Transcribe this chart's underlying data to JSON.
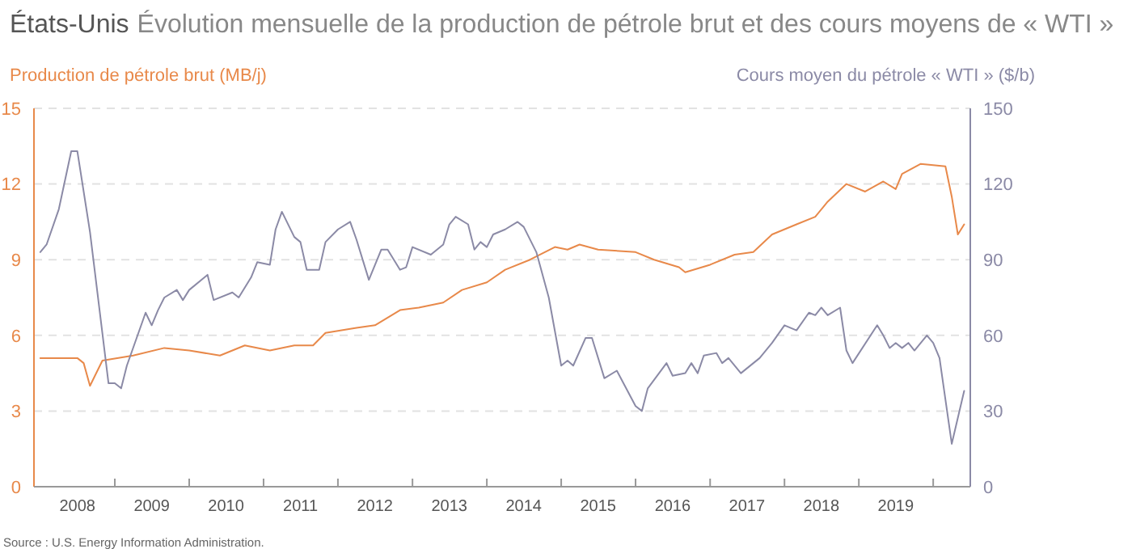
{
  "chart_data": {
    "type": "line",
    "title": "États-Unis",
    "subtitle": "Évolution mensuelle de la production de pétrole brut et des cours moyens de « WTI »",
    "ylabel": "Production de pétrole brut (MB/j)",
    "y2label": "Cours moyen du pétrole « WTI » ($/b)",
    "annotations": [
      "Source : U.S. Energy Information Administration."
    ],
    "xlim": [
      "2007-12",
      "2020-07"
    ],
    "xticks": [
      {
        "value": "2008-07",
        "label": "2008"
      },
      {
        "value": "2009-01",
        "label": null
      },
      {
        "value": "2009-07",
        "label": "2009"
      },
      {
        "value": "2010-01",
        "label": null
      },
      {
        "value": "2010-07",
        "label": "2010"
      },
      {
        "value": "2011-01",
        "label": null
      },
      {
        "value": "2011-07",
        "label": "2011"
      },
      {
        "value": "2012-01",
        "label": null
      },
      {
        "value": "2012-07",
        "label": "2012"
      },
      {
        "value": "2013-01",
        "label": null
      },
      {
        "value": "2013-07",
        "label": "2013"
      },
      {
        "value": "2014-01",
        "label": null
      },
      {
        "value": "2014-07",
        "label": "2014"
      },
      {
        "value": "2015-01",
        "label": null
      },
      {
        "value": "2015-07",
        "label": "2015"
      },
      {
        "value": "2016-01",
        "label": null
      },
      {
        "value": "2016-07",
        "label": "2016"
      },
      {
        "value": "2017-01",
        "label": null
      },
      {
        "value": "2017-07",
        "label": "2017"
      },
      {
        "value": "2018-01",
        "label": null
      },
      {
        "value": "2018-07",
        "label": "2018"
      },
      {
        "value": "2019-01",
        "label": null
      },
      {
        "value": "2019-07",
        "label": "2019"
      },
      {
        "value": "2020-01",
        "label": null
      }
    ],
    "ylim": [
      0,
      15
    ],
    "yticks": [
      0,
      3,
      6,
      9,
      12,
      15
    ],
    "y2lim": [
      0,
      150
    ],
    "y2ticks": [
      0,
      30,
      60,
      90,
      120,
      150
    ],
    "grid": "y",
    "marker": "none",
    "line_style": "solid",
    "series": [
      {
        "color": "#e8894a",
        "x": [
          "2008-01",
          "2008-07",
          "2008-08",
          "2008-09",
          "2008-11",
          "2009-04",
          "2009-09",
          "2010-01",
          "2010-06",
          "2010-10",
          "2011-02",
          "2011-06",
          "2011-09",
          "2011-11",
          "2012-04",
          "2012-07",
          "2012-11",
          "2013-02",
          "2013-06",
          "2013-09",
          "2014-01",
          "2014-04",
          "2014-08",
          "2014-12",
          "2015-02",
          "2015-04",
          "2015-07",
          "2016-01",
          "2016-04",
          "2016-08",
          "2016-09",
          "2017-01",
          "2017-05",
          "2017-08",
          "2017-11",
          "2018-03",
          "2018-06",
          "2018-08",
          "2018-11",
          "2019-02",
          "2019-05",
          "2019-07",
          "2019-08",
          "2019-11",
          "2020-03",
          "2020-04",
          "2020-05",
          "2020-06"
        ],
        "values": [
          5.1,
          5.1,
          4.9,
          4.0,
          5.0,
          5.2,
          5.5,
          5.4,
          5.2,
          5.6,
          5.4,
          5.6,
          5.6,
          6.1,
          6.3,
          6.4,
          7.0,
          7.1,
          7.3,
          7.8,
          8.1,
          8.6,
          9.0,
          9.5,
          9.4,
          9.6,
          9.4,
          9.3,
          9.0,
          8.7,
          8.5,
          8.8,
          9.2,
          9.3,
          10.0,
          10.4,
          10.7,
          11.3,
          12.0,
          11.7,
          12.1,
          11.8,
          12.4,
          12.8,
          12.7,
          11.5,
          10.0,
          10.4
        ]
      },
      {
        "color": "#8b8aa6",
        "axis": "y2",
        "x": [
          "2008-01",
          "2008-02",
          "2008-04",
          "2008-06",
          "2008-07",
          "2008-09",
          "2008-12",
          "2009-01",
          "2009-02",
          "2009-03",
          "2009-06",
          "2009-07",
          "2009-08",
          "2009-09",
          "2009-11",
          "2009-12",
          "2010-01",
          "2010-04",
          "2010-05",
          "2010-08",
          "2010-09",
          "2010-11",
          "2010-12",
          "2011-02",
          "2011-03",
          "2011-04",
          "2011-06",
          "2011-07",
          "2011-08",
          "2011-10",
          "2011-11",
          "2012-01",
          "2012-03",
          "2012-04",
          "2012-06",
          "2012-08",
          "2012-09",
          "2012-11",
          "2012-12",
          "2013-01",
          "2013-04",
          "2013-06",
          "2013-07",
          "2013-08",
          "2013-10",
          "2013-11",
          "2013-12",
          "2014-01",
          "2014-02",
          "2014-04",
          "2014-06",
          "2014-07",
          "2014-09",
          "2014-11",
          "2015-01",
          "2015-02",
          "2015-03",
          "2015-05",
          "2015-06",
          "2015-08",
          "2015-10",
          "2016-01",
          "2016-02",
          "2016-03",
          "2016-06",
          "2016-07",
          "2016-09",
          "2016-10",
          "2016-11",
          "2016-12",
          "2017-02",
          "2017-03",
          "2017-04",
          "2017-06",
          "2017-09",
          "2017-11",
          "2018-01",
          "2018-03",
          "2018-05",
          "2018-06",
          "2018-07",
          "2018-08",
          "2018-10",
          "2018-11",
          "2018-12",
          "2019-04",
          "2019-05",
          "2019-06",
          "2019-07",
          "2019-08",
          "2019-09",
          "2019-10",
          "2019-12",
          "2020-01",
          "2020-02",
          "2020-04",
          "2020-06"
        ],
        "values": [
          93,
          96,
          110,
          133,
          133,
          101,
          41,
          41,
          39,
          48,
          69,
          64,
          70,
          75,
          78,
          74,
          78,
          84,
          74,
          77,
          75,
          83,
          89,
          88,
          102,
          109,
          99,
          97,
          86,
          86,
          97,
          102,
          105,
          98,
          82,
          94,
          94,
          86,
          87,
          95,
          92,
          96,
          104,
          107,
          104,
          94,
          97,
          95,
          100,
          102,
          105,
          103,
          93,
          75,
          48,
          50,
          48,
          59,
          59,
          43,
          46,
          32,
          30,
          39,
          49,
          44,
          45,
          49,
          45,
          52,
          53,
          49,
          51,
          45,
          51,
          57,
          64,
          62,
          69,
          68,
          71,
          68,
          71,
          54,
          49,
          64,
          60,
          55,
          57,
          55,
          57,
          54,
          60,
          57,
          51,
          17,
          38
        ]
      }
    ]
  }
}
